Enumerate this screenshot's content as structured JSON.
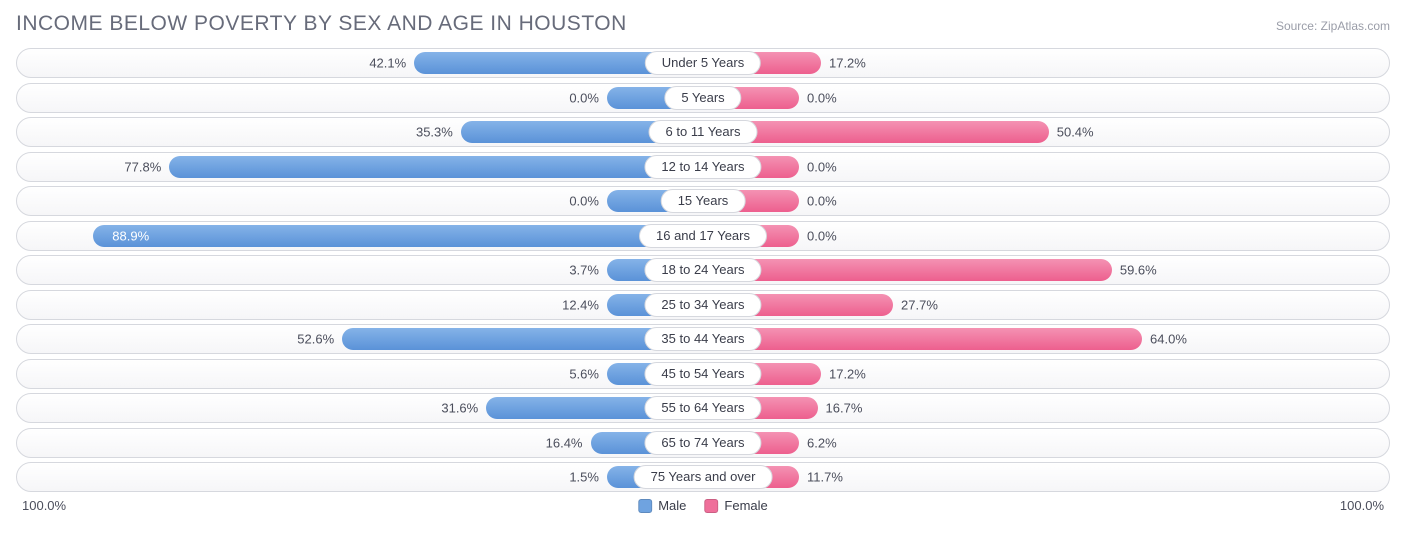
{
  "title": "INCOME BELOW POVERTY BY SEX AND AGE IN HOUSTON",
  "source": "Source: ZipAtlas.com",
  "chart": {
    "type": "diverging-bar",
    "axis_max": 100.0,
    "axis_label_left": "100.0%",
    "axis_label_right": "100.0%",
    "male_color_top": "#85b3e8",
    "male_color_bottom": "#5a92d8",
    "female_color_top": "#f492b3",
    "female_color_bottom": "#ed5f8e",
    "track_border": "#d6d8de",
    "track_bg_top": "#ffffff",
    "track_bg_bottom": "#f6f6f8",
    "label_bg": "#ffffff",
    "text_color": "#4b4e5c",
    "title_color": "#676b7a",
    "font_family": "Arial, sans-serif",
    "title_fontsize": 21,
    "label_fontsize": 13,
    "min_bar_pct": 14,
    "inside_threshold_pct": 80,
    "legend": {
      "male": "Male",
      "female": "Female"
    },
    "rows": [
      {
        "category": "Under 5 Years",
        "male": 42.1,
        "female": 17.2
      },
      {
        "category": "5 Years",
        "male": 0.0,
        "female": 0.0
      },
      {
        "category": "6 to 11 Years",
        "male": 35.3,
        "female": 50.4
      },
      {
        "category": "12 to 14 Years",
        "male": 77.8,
        "female": 0.0
      },
      {
        "category": "15 Years",
        "male": 0.0,
        "female": 0.0
      },
      {
        "category": "16 and 17 Years",
        "male": 88.9,
        "female": 0.0
      },
      {
        "category": "18 to 24 Years",
        "male": 3.7,
        "female": 59.6
      },
      {
        "category": "25 to 34 Years",
        "male": 12.4,
        "female": 27.7
      },
      {
        "category": "35 to 44 Years",
        "male": 52.6,
        "female": 64.0
      },
      {
        "category": "45 to 54 Years",
        "male": 5.6,
        "female": 17.2
      },
      {
        "category": "55 to 64 Years",
        "male": 31.6,
        "female": 16.7
      },
      {
        "category": "65 to 74 Years",
        "male": 16.4,
        "female": 6.2
      },
      {
        "category": "75 Years and over",
        "male": 1.5,
        "female": 11.7
      }
    ]
  }
}
